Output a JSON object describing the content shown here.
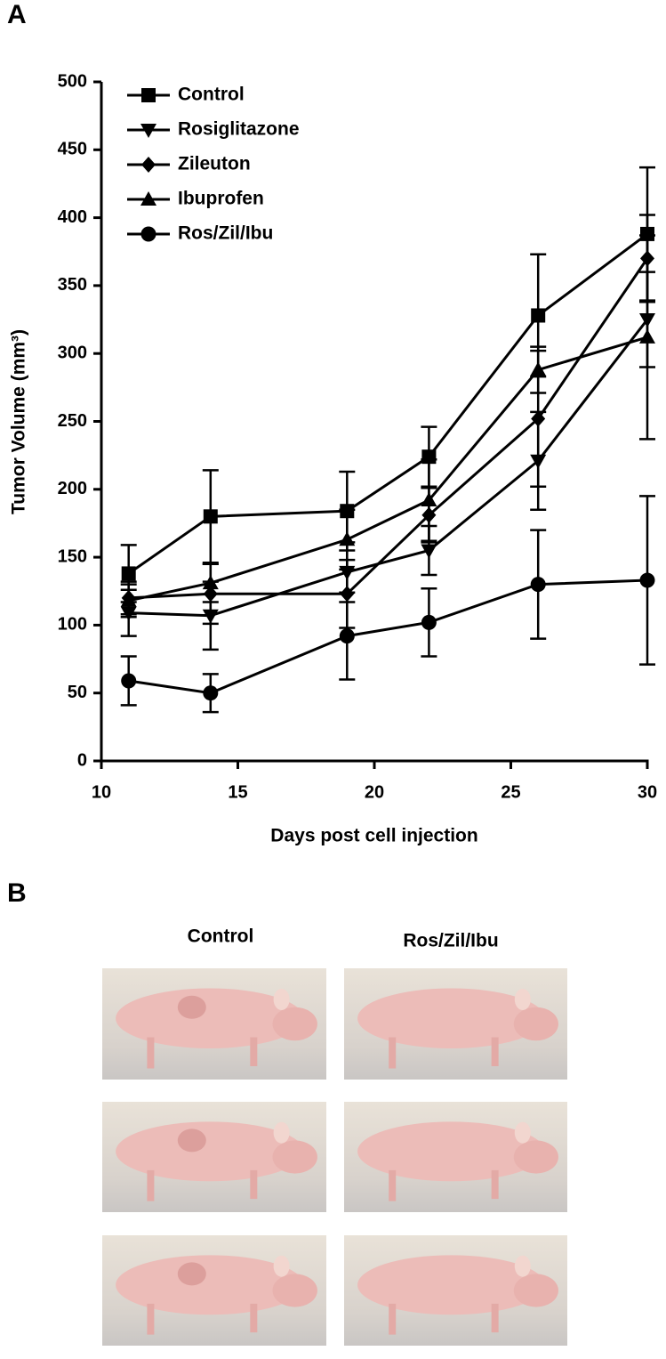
{
  "panels": {
    "a_label": "A",
    "b_label": "B"
  },
  "chart_data": {
    "type": "line",
    "x_label": "Days post cell injection",
    "y_label": "Tumor Volume (mm³)",
    "x": [
      11,
      14,
      19,
      22,
      26,
      30
    ],
    "xlim": [
      10,
      30
    ],
    "xticks": [
      10,
      15,
      20,
      25,
      30
    ],
    "ylim": [
      0,
      500
    ],
    "yticks": [
      0,
      50,
      100,
      150,
      200,
      250,
      300,
      350,
      400,
      450,
      500
    ],
    "legend": "upper left",
    "series": [
      {
        "name": "Control",
        "color": "#000000",
        "marker": "square",
        "values": [
          138,
          180,
          184,
          224,
          328,
          388
        ],
        "errors": [
          21,
          34,
          29,
          22,
          45,
          49
        ]
      },
      {
        "name": "Rosiglitazone",
        "color": "#000000",
        "marker": "triangle-down",
        "values": [
          109,
          107,
          139,
          155,
          221,
          325
        ],
        "errors": [
          17,
          25,
          22,
          18,
          36,
          35
        ]
      },
      {
        "name": "Zileuton",
        "color": "#000000",
        "marker": "diamond",
        "values": [
          120,
          123,
          123,
          181,
          252,
          370
        ],
        "errors": [
          12,
          22,
          25,
          20,
          50,
          32
        ]
      },
      {
        "name": "Ibuprofen",
        "color": "#000000",
        "marker": "triangle-up",
        "values": [
          118,
          131,
          163,
          192,
          288,
          312
        ],
        "errors": [
          12,
          14,
          22,
          30,
          17,
          75
        ]
      },
      {
        "name": "Ros/Zil/Ibu",
        "color": "#000000",
        "marker": "circle",
        "values": [
          59,
          50,
          92,
          102,
          130,
          133
        ],
        "errors": [
          18,
          14,
          32,
          25,
          40,
          62
        ]
      }
    ]
  },
  "photos": {
    "columns": [
      "Control",
      "Ros/Zil/Ibu"
    ]
  }
}
